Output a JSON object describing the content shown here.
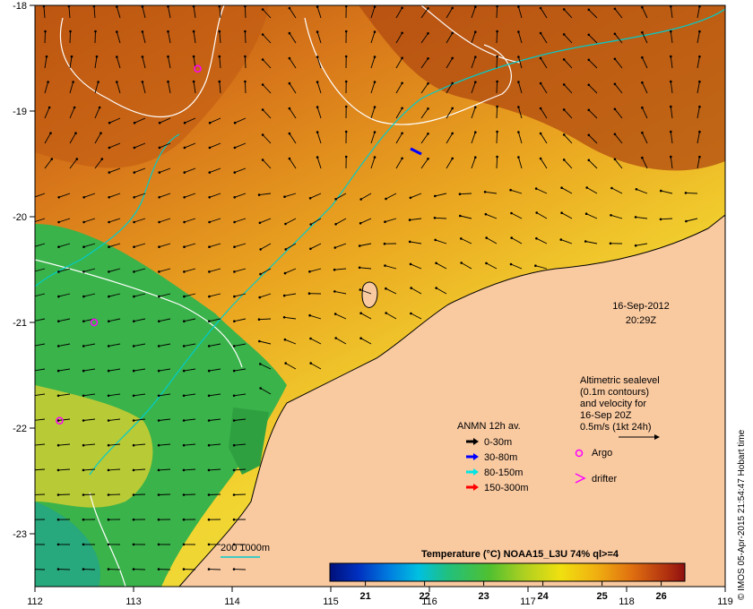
{
  "axes": {
    "lon_ticks": [
      "112",
      "113",
      "114",
      "115",
      "116",
      "117",
      "118",
      "119"
    ],
    "lat_ticks": [
      "-18",
      "-19",
      "-20",
      "-21",
      "-22",
      "-23"
    ]
  },
  "date_label": {
    "line1": "16-Sep-2012",
    "line2": "20:29Z"
  },
  "altimetry_note": {
    "lines": [
      "Altimetric sealevel",
      "(0.1m contours)",
      "and velocity for",
      "16-Sep 20Z",
      "0.5m/s (1kt 24h)"
    ]
  },
  "anmn_legend": {
    "title": "ANMN 12h av.",
    "items": [
      {
        "label": "0-30m",
        "color": "#000000"
      },
      {
        "label": "30-80m",
        "color": "#0000ff"
      },
      {
        "label": "80-150m",
        "color": "#00e5e5"
      },
      {
        "label": "150-300m",
        "color": "#ff0000"
      }
    ]
  },
  "markers_legend": {
    "argo": {
      "label": "Argo",
      "color": "#ff00ff"
    },
    "drifter": {
      "label": "drifter",
      "color": "#ff00ff"
    }
  },
  "depth_legend": {
    "label": "200  1000m",
    "color": "#00cccc"
  },
  "colorbar": {
    "title": "Temperature (°C) NOAA15_L3U 74% ql>=4",
    "ticks": [
      "21",
      "22",
      "23",
      "24",
      "25",
      "26"
    ],
    "range": [
      20.4,
      26.4
    ]
  },
  "credit": "© IMOS 05-Apr-2015 21:54:47 Hobart time",
  "colors": {
    "land": "#f9c9a0",
    "warm": "#c05a10",
    "mid": "#e8a020",
    "cool": "#3ab34a"
  },
  "argo_floats": [
    {
      "lon": 113.65,
      "lat": -18.6
    },
    {
      "lon": 112.6,
      "lat": -21.0
    },
    {
      "lon": 112.25,
      "lat": -21.93
    }
  ]
}
